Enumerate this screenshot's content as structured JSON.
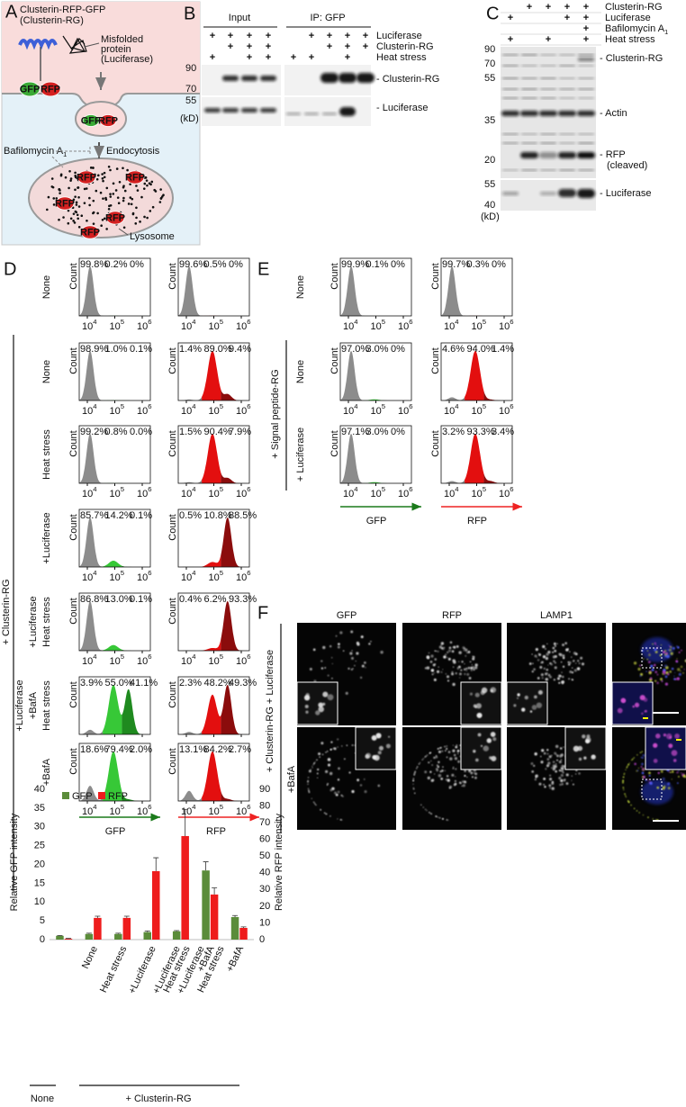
{
  "panel_a": {
    "letter": "A",
    "construct": [
      "Clusterin-RFP-GFP",
      "(Clusterin-RG)"
    ],
    "cargo": [
      "Misfolded",
      "protein",
      "(Luciferase)"
    ],
    "tags": [
      "GFP",
      "RFP"
    ],
    "inhibitor": "Bafilomycin A",
    "inhibitor_sub": "1",
    "route": "Endocytosis",
    "organelle": "Lysosome"
  },
  "panel_b": {
    "letter": "B",
    "groups": [
      "Input",
      "IP: GFP"
    ],
    "conditions": [
      "Luciferase",
      "Clusterin-RG",
      "Heat stress"
    ],
    "input": [
      [
        "+",
        "+",
        "+",
        "+"
      ],
      [
        null,
        "+",
        "+",
        "+"
      ],
      [
        "+",
        null,
        "+",
        "+"
      ]
    ],
    "ip": [
      [
        null,
        "+",
        "+",
        "+",
        "+"
      ],
      [
        null,
        null,
        "+",
        "+",
        "+"
      ],
      [
        "+",
        "+",
        null,
        "+",
        null
      ]
    ],
    "markers": [
      "90",
      "70",
      "55"
    ],
    "unit": "(kD)",
    "bands": [
      "- Clusterin-RG",
      "- Luciferase"
    ]
  },
  "panel_c": {
    "letter": "C",
    "conditions": [
      "Clusterin-RG",
      "Luciferase",
      "Bafilomycin A",
      "Heat stress"
    ],
    "inhibitor_sub": "1",
    "lanes": [
      [
        null,
        "+",
        "+",
        "+",
        "+"
      ],
      [
        "+",
        null,
        null,
        "+",
        "+"
      ],
      [
        null,
        null,
        null,
        null,
        "+"
      ],
      [
        "+",
        null,
        "+",
        null,
        "+"
      ]
    ],
    "markers": [
      "90",
      "70",
      "55",
      "35",
      "20"
    ],
    "lower_markers": [
      "55",
      "40"
    ],
    "unit": "(kD)",
    "bands": [
      "- Clusterin-RG",
      "- Actin",
      "- RFP",
      "(cleaved)",
      "- Luciferase"
    ]
  },
  "panel_d": {
    "letter": "D",
    "y_label": "Count",
    "channels": [
      "GFP",
      "RFP"
    ],
    "group": "+ Clusterin-RG",
    "xticks": [
      {
        "base": "10",
        "exp": "4"
      },
      {
        "base": "10",
        "exp": "5"
      },
      {
        "base": "10",
        "exp": "6"
      }
    ],
    "rows": [
      {
        "label": [
          "None"
        ],
        "gfp": [
          "99.8%",
          "0.2%",
          "0%"
        ],
        "rfp": [
          "99.6%",
          "0.5%",
          "0%"
        ]
      },
      {
        "label": [
          "None"
        ],
        "gfp": [
          "98.9%",
          "1.0%",
          "0.1%"
        ],
        "rfp": [
          "1.4%",
          "89.0%",
          "9.4%"
        ]
      },
      {
        "label": [
          "Heat stress"
        ],
        "gfp": [
          "99.2%",
          "0.8%",
          "0.0%"
        ],
        "rfp": [
          "1.5%",
          "90.4%",
          "7.9%"
        ]
      },
      {
        "label": [
          "+Luciferase"
        ],
        "gfp": [
          "85.7%",
          "14.2%",
          "0.1%"
        ],
        "rfp": [
          "0.5%",
          "10.8%",
          "88.5%"
        ]
      },
      {
        "label": [
          "+Luciferase",
          "Heat stress"
        ],
        "gfp": [
          "86.8%",
          "13.0%",
          "0.1%"
        ],
        "rfp": [
          "0.4%",
          "6.2%",
          "93.3%"
        ]
      },
      {
        "label": [
          "+Luciferase",
          "+BafA",
          "Heat stress"
        ],
        "gfp": [
          "3.9%",
          "55.0%",
          "41.1%"
        ],
        "rfp": [
          "2.3%",
          "48.2%",
          "49.3%"
        ]
      },
      {
        "label": [
          "+BafA"
        ],
        "gfp": [
          "18.6%",
          "79.4%",
          "2.0%"
        ],
        "rfp": [
          "13.1%",
          "84.2%",
          "2.7%"
        ]
      }
    ]
  },
  "panel_e": {
    "letter": "E",
    "y_label": "Count",
    "channels": [
      "GFP",
      "RFP"
    ],
    "group": "+ Signal peptide-RG",
    "xticks": [
      {
        "base": "10",
        "exp": "4"
      },
      {
        "base": "10",
        "exp": "5"
      },
      {
        "base": "10",
        "exp": "6"
      }
    ],
    "rows": [
      {
        "label": [
          "None"
        ],
        "gfp": [
          "99.9%",
          "0.1%",
          "0%"
        ],
        "rfp": [
          "99.7%",
          "0.3%",
          "0%"
        ]
      },
      {
        "label": [
          "None"
        ],
        "gfp": [
          "97.0%",
          "3.0%",
          "0%"
        ],
        "rfp": [
          "4.6%",
          "94.0%",
          "1.4%"
        ]
      },
      {
        "label": [
          "+ Luciferase"
        ],
        "gfp": [
          "97.1%",
          "3.0%",
          "0%"
        ],
        "rfp": [
          "3.2%",
          "93.3%",
          "3.4%"
        ]
      }
    ]
  },
  "panel_f": {
    "letter": "F",
    "channels": [
      "GFP",
      "RFP",
      "LAMP1"
    ],
    "conditions": [
      "+ Clusterin-RG + Luciferase",
      "+BafA"
    ]
  },
  "chart_data": {
    "type": "bar",
    "categories": [
      null,
      [
        "None"
      ],
      [
        "Heat stress"
      ],
      [
        "+Luciferase"
      ],
      [
        "+Luciferase",
        "Heat stress"
      ],
      [
        "+Luciferase",
        "+BafA",
        "Heat stress"
      ],
      [
        "+BafA"
      ]
    ],
    "group_labels": [
      "None",
      "+ Clusterin-RG"
    ],
    "series": [
      {
        "name": "GFP",
        "color": "#5b8c3a",
        "axis": "y",
        "values": [
          1.0,
          1.5,
          1.5,
          2.0,
          2.2,
          18.4,
          6.0
        ],
        "errors": [
          0.1,
          0.2,
          0.2,
          0.3,
          0.2,
          2.3,
          0.4
        ]
      },
      {
        "name": "RFP",
        "color": "#ee1c1c",
        "axis": "y2",
        "values": [
          0.5,
          13,
          13,
          41,
          62,
          27,
          7
        ],
        "errors": [
          0.2,
          1,
          1,
          8,
          16,
          4,
          0.6
        ]
      }
    ],
    "ylabel": "Relative GFP intensity",
    "y2label": "Relative RFP intensity",
    "ylim": [
      0,
      40
    ],
    "yticks": [
      0,
      5,
      10,
      15,
      20,
      25,
      30,
      35,
      40
    ],
    "y2lim": [
      0,
      90
    ],
    "y2ticks": [
      0,
      10,
      20,
      30,
      40,
      50,
      60,
      70,
      80,
      90
    ],
    "grid": false,
    "legend": "top-left"
  }
}
